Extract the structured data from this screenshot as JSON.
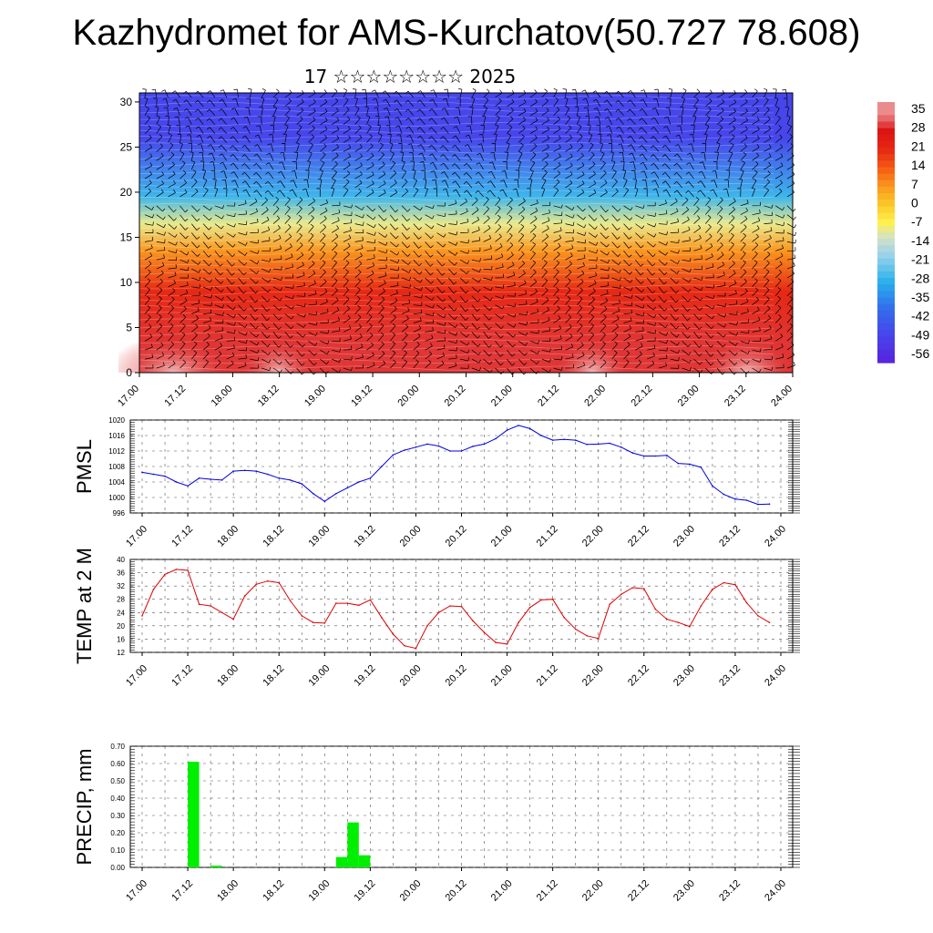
{
  "title": "Kazhydromet for AMS-Kurchatov(50.727 78.608)",
  "subtitle": "17 ☆☆☆☆☆☆☆☆ 2025",
  "colors": {
    "pmsl_line": "#0000dd",
    "temp_line": "#dd0000",
    "precip_bar": "#00ee00",
    "grid": "#555555"
  },
  "chart_data": [
    {
      "type": "heatmap",
      "y_axis_ticks": [
        "0",
        "5",
        "10",
        "15",
        "20",
        "25",
        "30"
      ],
      "ylim": [
        0,
        31
      ],
      "x_tick_labels": [
        "17.00",
        "17.12",
        "18.00",
        "18.12",
        "19.00",
        "19.12",
        "20.00",
        "20.12",
        "21.00",
        "21.12",
        "22.00",
        "22.12",
        "23.00",
        "23.12",
        "24.00"
      ],
      "colorbar_labels": [
        "35",
        "28",
        "21",
        "14",
        "7",
        "0",
        "-7",
        "-14",
        "-21",
        "-28",
        "-35",
        "-42",
        "-49",
        "-56"
      ],
      "layers": [
        {
          "y_range": [
            0,
            6
          ],
          "value": 30
        },
        {
          "y_range": [
            6,
            12
          ],
          "value": 21
        },
        {
          "y_range": [
            12,
            15
          ],
          "value": 7
        },
        {
          "y_range": [
            15,
            18
          ],
          "value": -10
        },
        {
          "y_range": [
            18,
            21
          ],
          "value": -28
        },
        {
          "y_range": [
            21,
            31
          ],
          "value": -50
        }
      ]
    },
    {
      "type": "line",
      "ylabel": "PMSL",
      "ylim": [
        996,
        1020
      ],
      "y_ticks": [
        "996",
        "1000",
        "1004",
        "1008",
        "1012",
        "1016",
        "1020"
      ],
      "x_tick_labels": [
        "17.00",
        "17.12",
        "18.00",
        "18.12",
        "19.00",
        "19.12",
        "20.00",
        "20.12",
        "21.00",
        "21.12",
        "22.00",
        "22.12",
        "23.00",
        "23.12",
        "24.00"
      ],
      "x_hours": [
        0,
        3,
        6,
        9,
        12,
        15,
        18,
        21,
        24,
        27,
        30,
        33,
        36,
        39,
        42,
        45,
        48,
        51,
        54,
        57,
        60,
        63,
        66,
        69,
        72,
        75,
        78,
        81,
        84,
        87,
        90,
        93,
        96,
        99,
        102,
        105,
        108,
        111,
        114,
        117,
        120,
        123,
        126,
        129,
        132,
        135,
        138,
        141,
        144,
        147,
        150,
        153,
        156,
        159,
        162,
        165
      ],
      "values": [
        1006.5,
        1006,
        1005.5,
        1004,
        1003,
        1005,
        1004.7,
        1004.5,
        1006.8,
        1007,
        1006.8,
        1006,
        1005,
        1004.5,
        1003.5,
        1001,
        999,
        1001,
        1002.5,
        1004,
        1005,
        1008,
        1011,
        1012.2,
        1013,
        1013.8,
        1013.3,
        1012,
        1012,
        1013.2,
        1013.8,
        1015.2,
        1017.4,
        1018.6,
        1017.8,
        1016,
        1014.8,
        1015,
        1014.8,
        1013.7,
        1013.8,
        1014,
        1013,
        1011.5,
        1010.7,
        1010.7,
        1010.9,
        1008.8,
        1008.6,
        1007.8,
        1003,
        1000.8,
        999.6,
        999.3,
        998.2,
        998.3
      ]
    },
    {
      "type": "line",
      "ylabel": "TEMP at 2 M",
      "ylim": [
        12,
        40
      ],
      "y_ticks": [
        "12",
        "16",
        "20",
        "24",
        "28",
        "32",
        "36",
        "40"
      ],
      "x_tick_labels": [
        "17.00",
        "17.12",
        "18.00",
        "18.12",
        "19.00",
        "19.12",
        "20.00",
        "20.12",
        "21.00",
        "21.12",
        "22.00",
        "22.12",
        "23.00",
        "23.12",
        "24.00"
      ],
      "x_hours": [
        0,
        3,
        6,
        9,
        12,
        15,
        18,
        21,
        24,
        27,
        30,
        33,
        36,
        39,
        42,
        45,
        48,
        51,
        54,
        57,
        60,
        63,
        66,
        69,
        72,
        75,
        78,
        81,
        84,
        87,
        90,
        93,
        96,
        99,
        102,
        105,
        108,
        111,
        114,
        117,
        120,
        123,
        126,
        129,
        132,
        135,
        138,
        141,
        144,
        147,
        150,
        153,
        156,
        159,
        162,
        165
      ],
      "values": [
        23,
        31,
        35.5,
        37,
        36.7,
        26.5,
        26,
        24,
        22,
        29,
        32.5,
        33.5,
        33,
        27.5,
        23,
        21,
        20.8,
        26.8,
        26.8,
        26.2,
        27.8,
        22.5,
        17.5,
        14,
        13.2,
        20,
        24,
        26,
        25.8,
        21.5,
        18,
        15,
        14.5,
        21,
        25.5,
        27.8,
        28,
        22.5,
        19,
        17,
        16.2,
        26.5,
        29.5,
        31.5,
        31.2,
        25,
        22,
        21,
        19.8,
        26,
        31,
        33,
        32.4,
        27,
        23,
        21
      ]
    },
    {
      "type": "bar",
      "ylabel": "PRECIP, mm",
      "ylim": [
        0,
        0.7
      ],
      "y_ticks": [
        "0.00",
        "0.10",
        "0.20",
        "0.30",
        "0.40",
        "0.50",
        "0.60",
        "0.70"
      ],
      "x_tick_labels": [
        "17.00",
        "17.12",
        "18.00",
        "18.12",
        "19.00",
        "19.12",
        "20.00",
        "20.12",
        "21.00",
        "21.12",
        "22.00",
        "22.12",
        "23.00",
        "23.12",
        "24.00"
      ],
      "bars": [
        {
          "start_hour": 12,
          "end_hour": 15,
          "value": 0.61
        },
        {
          "start_hour": 18,
          "end_hour": 21,
          "value": 0.01
        },
        {
          "start_hour": 51,
          "end_hour": 54,
          "value": 0.06
        },
        {
          "start_hour": 54,
          "end_hour": 57,
          "value": 0.26
        },
        {
          "start_hour": 57,
          "end_hour": 60,
          "value": 0.07
        }
      ]
    }
  ]
}
